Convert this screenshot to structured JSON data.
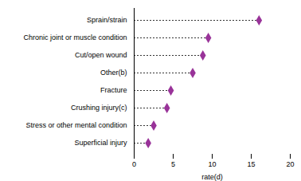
{
  "chart_data": {
    "type": "lollipop",
    "orientation": "horizontal",
    "categories": [
      "Superficial injury",
      "Stress or other mental condition",
      "Crushing injury(c)",
      "Fracture",
      "Other(b)",
      "Cut/open wound",
      "Chronic joint or muscle condition",
      "Sprain/strain"
    ],
    "values": [
      1.8,
      2.5,
      4.2,
      4.7,
      7.5,
      8.8,
      9.5,
      16.0
    ],
    "color": "#993399",
    "marker": "diamond",
    "line_style": "dashed",
    "xlabel": "rate(d)",
    "xlim": [
      0,
      20
    ],
    "xticks": [
      0,
      5,
      10,
      15,
      20
    ],
    "grid": false
  }
}
